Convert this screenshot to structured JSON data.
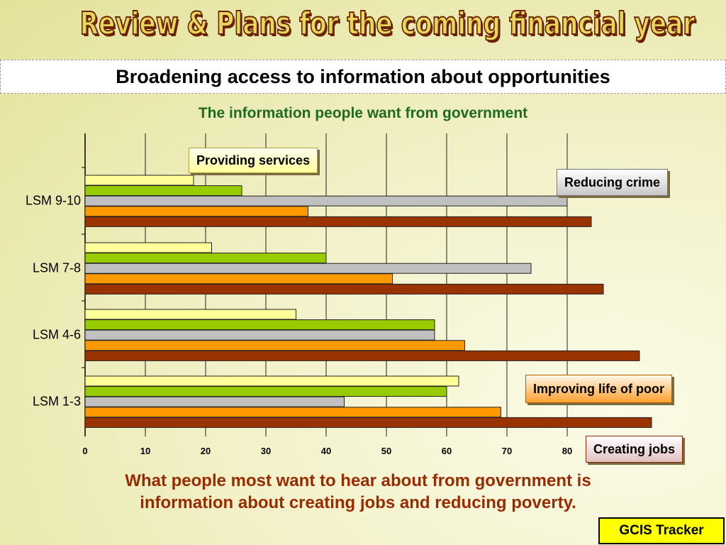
{
  "slide": {
    "title": "Review & Plans for the coming financial year",
    "subtitle": "Broadening access to information about opportunities",
    "footer_line1": "What people most want to hear about from government is",
    "footer_line2": "information about creating jobs and reducing poverty.",
    "tracker": "GCIS Tracker"
  },
  "chart_data": {
    "type": "bar",
    "orientation": "horizontal",
    "title": "The information people want from government",
    "categories": [
      "LSM 9-10",
      "LSM 7-8",
      "LSM 4-6",
      "LSM 1-3"
    ],
    "xlim": [
      0,
      80
    ],
    "xticks": [
      "0",
      "10",
      "20",
      "30",
      "40",
      "50",
      "60",
      "70",
      "80"
    ],
    "grid": true,
    "series": [
      {
        "name": "Providing services",
        "color": "#ffff99",
        "values": [
          18,
          21,
          35,
          62
        ]
      },
      {
        "name": "Improving life of poor",
        "color": "#99cc00",
        "values": [
          26,
          40,
          58,
          60
        ]
      },
      {
        "name": "Reducing crime",
        "color": "#c0c0c0",
        "values": [
          80,
          74,
          58,
          43
        ]
      },
      {
        "name": "Improving life of poor",
        "color": "#ff9900",
        "values": [
          37,
          51,
          63,
          69
        ]
      },
      {
        "name": "Creating jobs",
        "color": "#993300",
        "values": [
          84,
          86,
          92,
          94
        ]
      }
    ],
    "legend_labels": {
      "providing": "Providing services",
      "crime": "Reducing crime",
      "poor": "Improving life of poor",
      "jobs": "Creating jobs"
    }
  }
}
